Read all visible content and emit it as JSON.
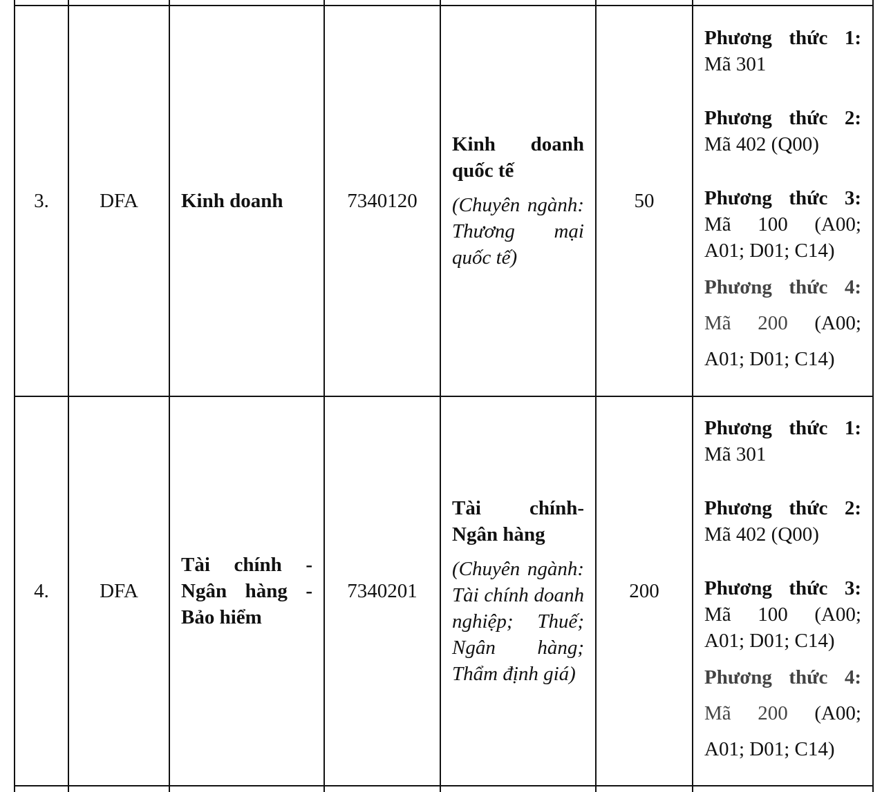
{
  "rows": [
    {
      "stt": "3.",
      "school_code": "DFA",
      "group": "Kinh doanh",
      "code": "7340120",
      "major": "Kinh doanh quốc tế",
      "specialization": "(Chuyên ngành: Thương mại quốc tế)",
      "quota": "50",
      "methods": [
        {
          "label": "Phương thức 1:",
          "value": "Mã 301"
        },
        {
          "label": "Phương thức 2:",
          "value": "Mã 402 (Q00)"
        },
        {
          "label": "Phương thức 3:",
          "value": "Mã 100 (A00; A01; D01; C14)"
        },
        {
          "label": "Phương thức 4:",
          "value_a": "Mã 200",
          "value_b": "(A00; A01; D01; C14)"
        }
      ]
    },
    {
      "stt": "4.",
      "school_code": "DFA",
      "group": "Tài chính - Ngân hàng - Bảo hiểm",
      "code": "7340201",
      "major": "Tài chính-Ngân hàng",
      "specialization": "(Chuyên ngành: Tài chính doanh nghiệp; Thuế; Ngân hàng; Thẩm định giá)",
      "quota": "200",
      "methods": [
        {
          "label": "Phương thức 1:",
          "value": "Mã 301"
        },
        {
          "label": "Phương thức 2:",
          "value": "Mã 402 (Q00)"
        },
        {
          "label": "Phương thức 3:",
          "value": "Mã 100 (A00; A01; D01; C14)"
        },
        {
          "label": "Phương thức 4:",
          "value_a": "Mã 200",
          "value_b": "(A00; A01; D01; C14)"
        }
      ]
    }
  ]
}
